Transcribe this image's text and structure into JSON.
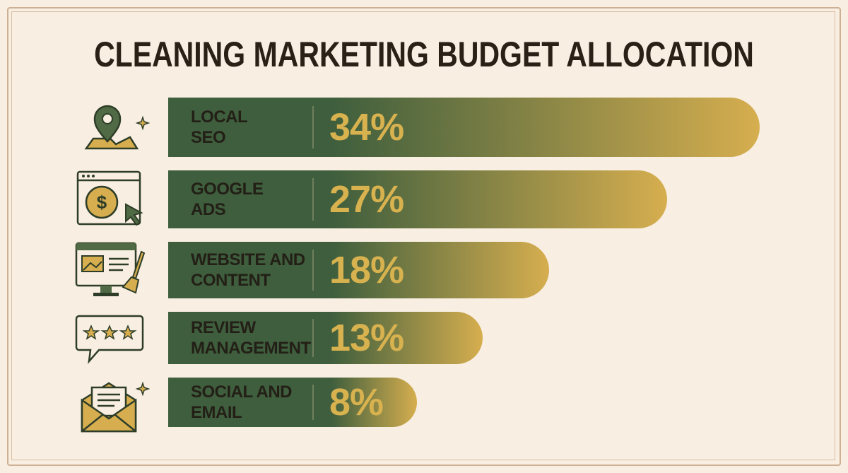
{
  "chart_data": {
    "type": "bar",
    "title": "CLEANING MARKETING BUDGET ALLOCATION",
    "categories": [
      "LOCAL\nSEO",
      "GOOGLE\nADS",
      "WEBSITE AND\nCONTENT",
      "REVIEW\nMANAGEMENT",
      "SOCIAL AND\nEMAIL"
    ],
    "values": [
      34,
      27,
      18,
      13,
      8
    ],
    "value_labels": [
      "34%",
      "27%",
      "18%",
      "13%",
      "8%"
    ]
  }
}
